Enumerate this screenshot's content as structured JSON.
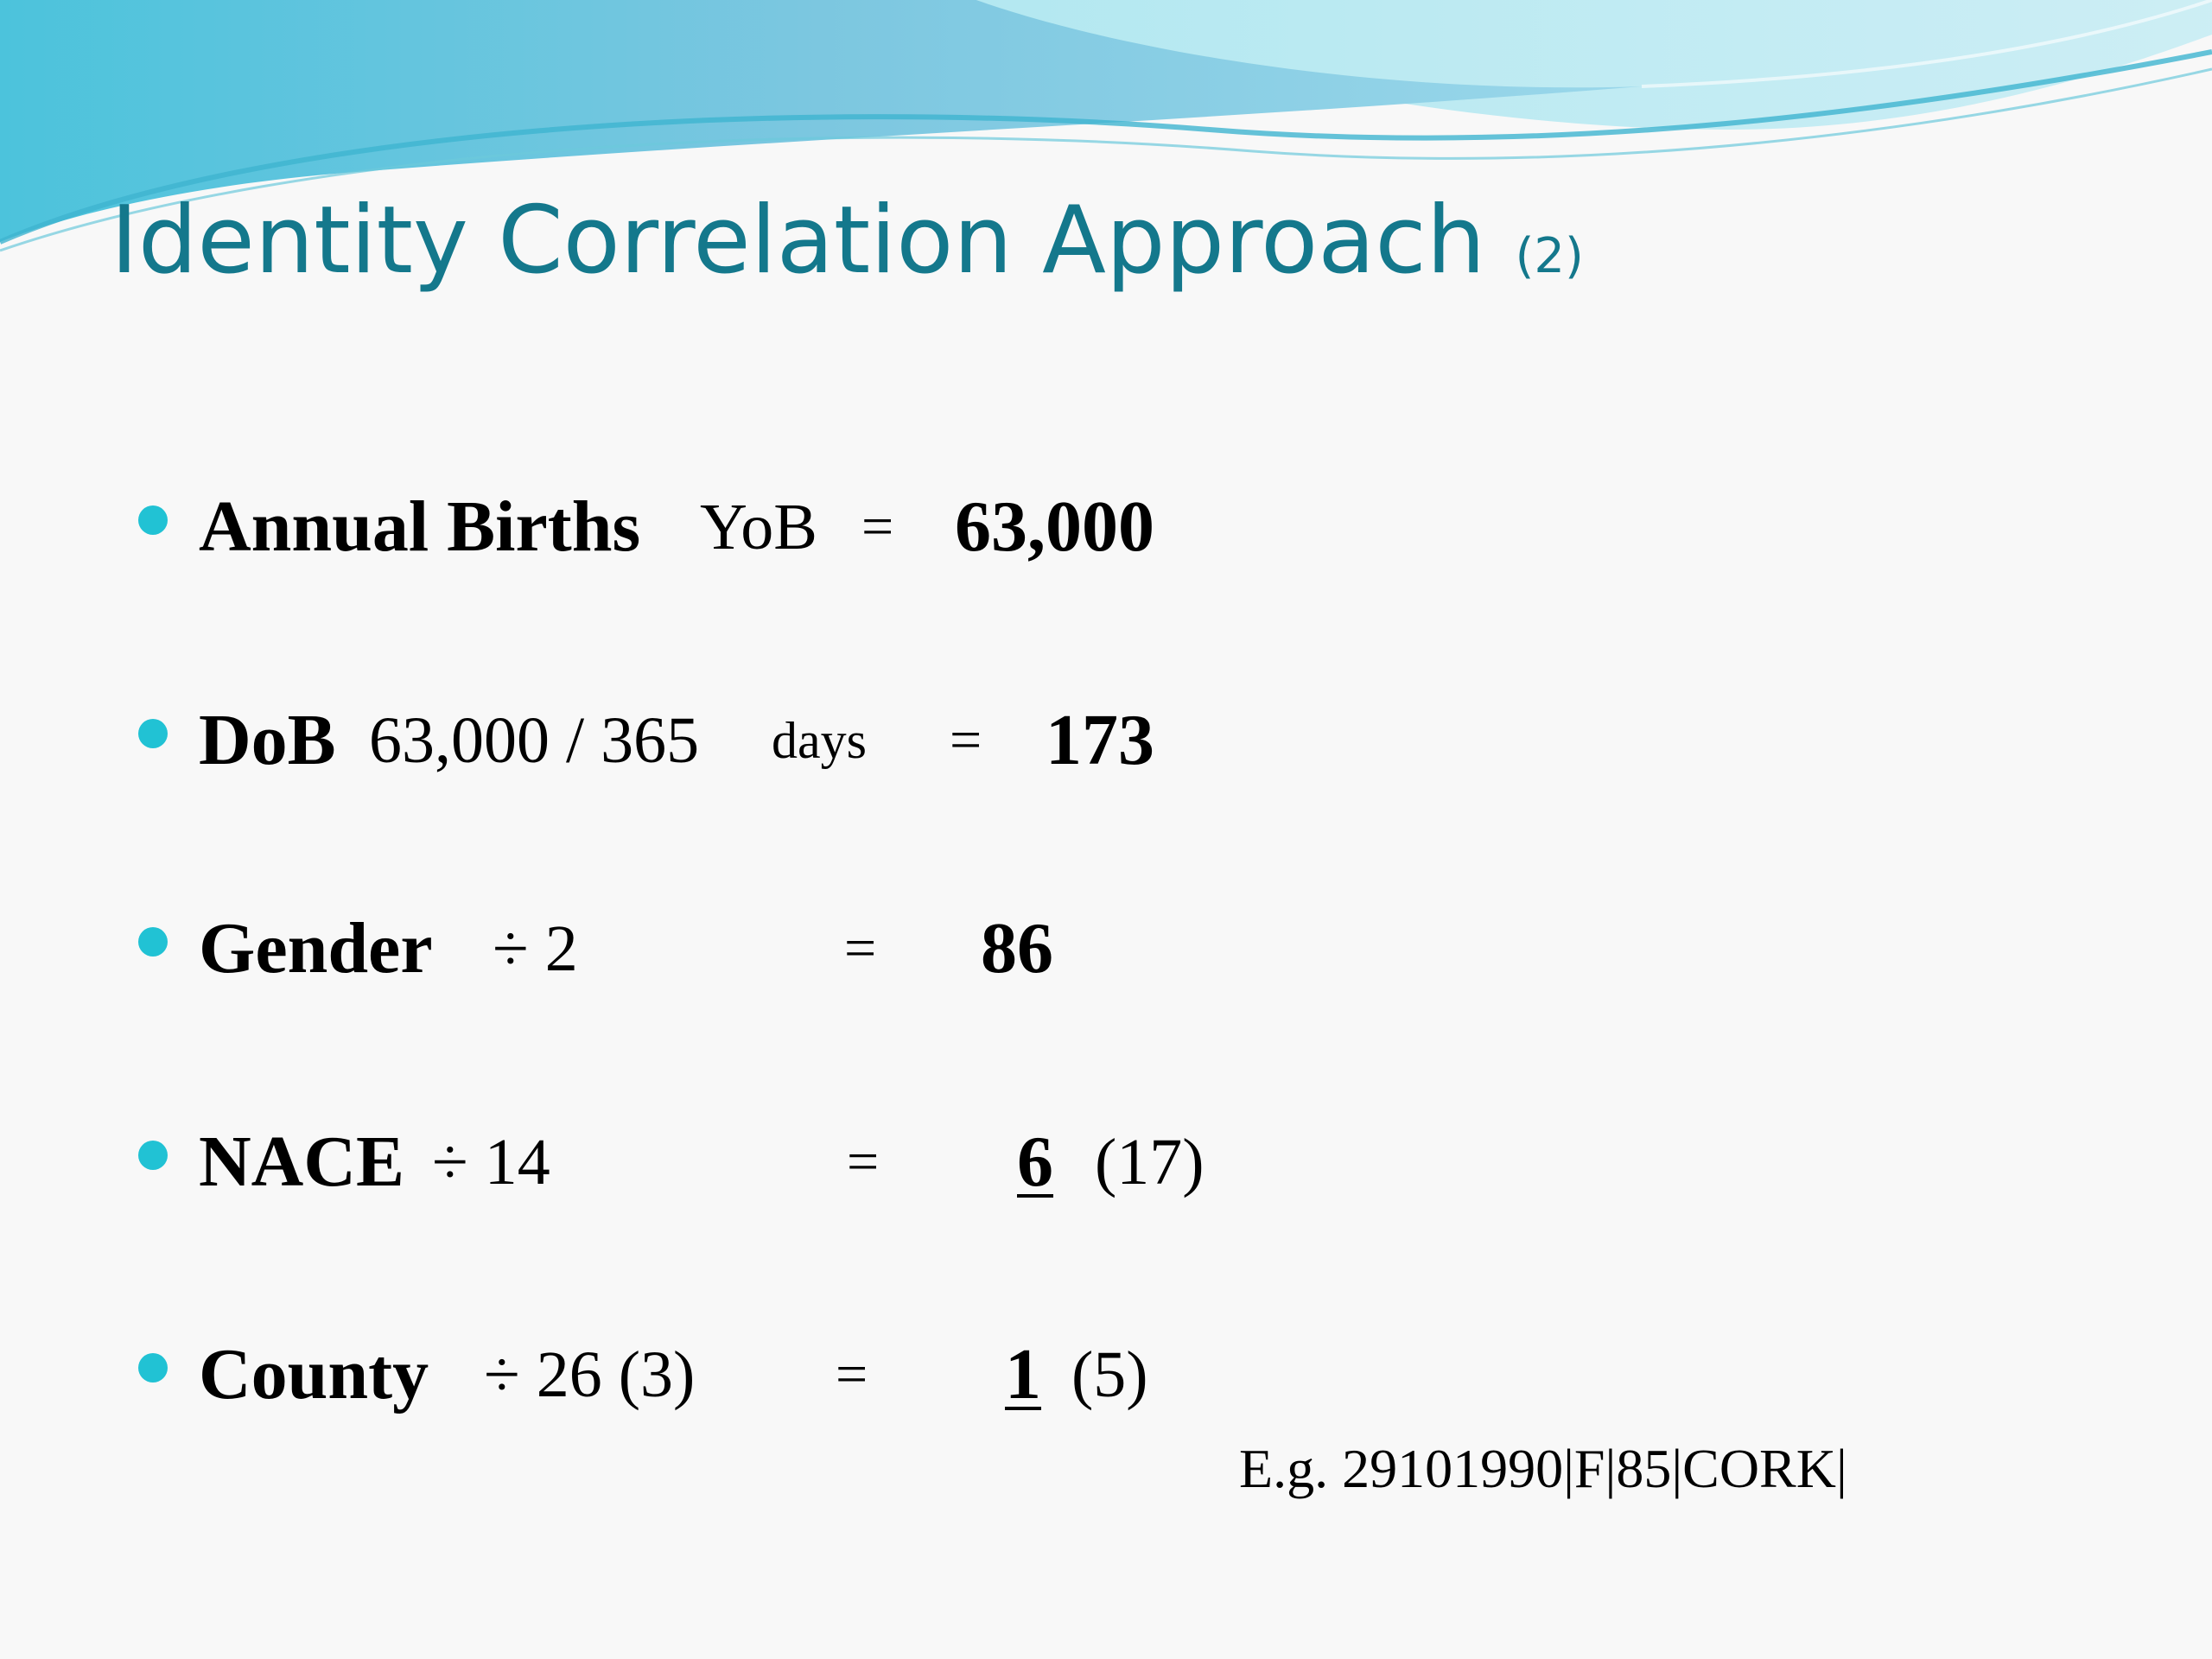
{
  "title": {
    "main": "Identity Correlation Approach",
    "number": "(2)"
  },
  "bullets": [
    {
      "label": "Annual Births",
      "detail": "YoB",
      "equals": "=",
      "result": "63,000",
      "extra": ""
    },
    {
      "label": "DoB",
      "detail": "63,000 / 365",
      "unit": "days",
      "equals": "=",
      "result": "173",
      "extra": ""
    },
    {
      "label": "Gender",
      "detail": "÷ 2",
      "equals": "=",
      "result": "86",
      "extra": ""
    },
    {
      "label": "NACE",
      "detail": "÷ 14",
      "equals": "=",
      "result": "6",
      "extra": "(17)"
    },
    {
      "label": "County",
      "detail": "÷ 26 (3)",
      "equals": "=",
      "result": "1",
      "extra": "(5)"
    }
  ],
  "example": "E.g.  29101990|F|85|CORK|",
  "colors": {
    "title": "#14788c",
    "bullet": "#21c2d4",
    "wave_dark": "#2aa9c9",
    "wave_light": "#a6dbe9"
  }
}
